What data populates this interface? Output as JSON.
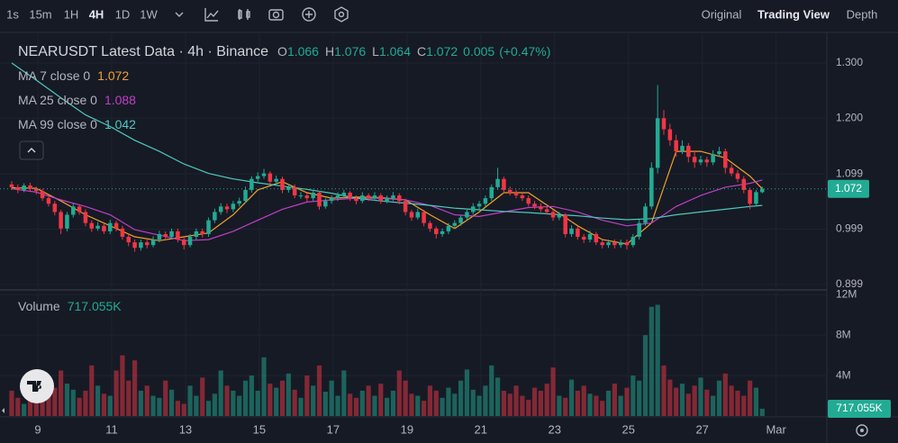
{
  "toolbar": {
    "intervals": [
      "1s",
      "15m",
      "1H",
      "4H",
      "1D",
      "1W"
    ],
    "active_interval": 3,
    "views": [
      "Original",
      "Trading View",
      "Depth"
    ],
    "active_view": 1
  },
  "chart_data": {
    "type": "candlestick",
    "title": "NEARUSDT Latest Data · 4h · Binance",
    "ohlc_legend": [
      {
        "label": "O",
        "value": 1.066
      },
      {
        "label": "H",
        "value": 1.076
      },
      {
        "label": "L",
        "value": 1.064
      },
      {
        "label": "C",
        "value": 1.072
      }
    ],
    "change": 0.005,
    "change_pct": {
      "value": 0.47,
      "label": "(+0.47%)"
    },
    "up_color": "#22ab94",
    "down_color": "#f23645",
    "open": [
      1.08,
      1.075,
      1.07,
      1.078,
      1.072,
      1.068,
      1.055,
      1.045,
      1.03,
      1.0,
      1.025,
      1.04,
      1.03,
      1.01,
      1.0,
      1.005,
      0.995,
      1.01,
      1.0,
      0.985,
      0.975,
      0.965,
      0.975,
      0.97,
      0.98,
      0.99,
      0.985,
      0.995,
      0.98,
      0.97,
      0.985,
      0.995,
      0.99,
      1.015,
      1.03,
      1.04,
      1.035,
      1.045,
      1.05,
      1.07,
      1.09,
      1.095,
      1.1,
      1.085,
      1.09,
      1.07,
      1.075,
      1.06,
      1.06,
      1.055,
      1.065,
      1.04,
      1.05,
      1.055,
      1.06,
      1.065,
      1.055,
      1.05,
      1.06,
      1.055,
      1.06,
      1.05,
      1.055,
      1.06,
      1.05,
      1.03,
      1.02,
      1.03,
      1.01,
      1.0,
      0.99,
      0.995,
      1.005,
      1.01,
      1.02,
      1.03,
      1.04,
      1.045,
      1.055,
      1.075,
      1.09,
      1.07,
      1.065,
      1.06,
      1.055,
      1.045,
      1.04,
      1.035,
      1.03,
      1.02,
      1.025,
      0.99,
      1.0,
      0.985,
      0.98,
      0.99,
      0.975,
      0.97,
      0.975,
      0.97,
      0.975,
      0.97,
      0.985,
      1.01,
      1.04,
      1.11,
      1.2,
      1.18,
      1.16,
      1.14,
      1.15,
      1.13,
      1.12,
      1.125,
      1.12,
      1.135,
      1.14,
      1.11,
      1.1,
      1.09,
      1.07,
      1.045,
      1.066
    ],
    "high": [
      1.086,
      1.08,
      1.082,
      1.083,
      1.076,
      1.072,
      1.06,
      1.05,
      1.034,
      1.03,
      1.046,
      1.044,
      1.035,
      1.015,
      1.012,
      1.01,
      1.016,
      1.014,
      1.005,
      0.99,
      0.98,
      0.98,
      0.98,
      0.986,
      0.996,
      0.995,
      1.0,
      1.0,
      0.985,
      0.99,
      1.0,
      1.0,
      1.02,
      1.036,
      1.046,
      1.045,
      1.05,
      1.056,
      1.076,
      1.095,
      1.102,
      1.108,
      1.104,
      1.096,
      1.094,
      1.08,
      1.08,
      1.066,
      1.064,
      1.07,
      1.068,
      1.055,
      1.06,
      1.066,
      1.07,
      1.068,
      1.06,
      1.066,
      1.064,
      1.066,
      1.064,
      1.06,
      1.066,
      1.064,
      1.054,
      1.034,
      1.036,
      1.034,
      1.014,
      1.004,
      1.0,
      1.01,
      1.015,
      1.025,
      1.036,
      1.046,
      1.05,
      1.06,
      1.08,
      1.11,
      1.094,
      1.076,
      1.07,
      1.064,
      1.06,
      1.05,
      1.046,
      1.04,
      1.034,
      1.03,
      1.028,
      1.006,
      1.004,
      0.99,
      0.996,
      0.994,
      0.98,
      0.98,
      0.98,
      0.98,
      0.98,
      0.99,
      1.016,
      1.046,
      1.12,
      1.26,
      1.215,
      1.19,
      1.17,
      1.16,
      1.155,
      1.14,
      1.132,
      1.13,
      1.142,
      1.148,
      1.145,
      1.116,
      1.106,
      1.095,
      1.074,
      1.07,
      1.076
    ],
    "low": [
      1.07,
      1.064,
      1.066,
      1.068,
      1.062,
      1.05,
      1.04,
      1.024,
      0.99,
      0.995,
      1.02,
      1.025,
      1.004,
      0.994,
      0.996,
      0.99,
      0.99,
      0.995,
      0.98,
      0.968,
      0.958,
      0.96,
      0.964,
      0.966,
      0.975,
      0.978,
      0.98,
      0.975,
      0.962,
      0.966,
      0.98,
      0.984,
      0.985,
      1.01,
      1.025,
      1.028,
      1.03,
      1.04,
      1.046,
      1.065,
      1.085,
      1.09,
      1.08,
      1.08,
      1.064,
      1.065,
      1.055,
      1.054,
      1.048,
      1.05,
      1.034,
      1.036,
      1.045,
      1.05,
      1.055,
      1.05,
      1.044,
      1.046,
      1.05,
      1.05,
      1.045,
      1.046,
      1.05,
      1.044,
      1.024,
      1.014,
      1.016,
      1.004,
      0.994,
      0.982,
      0.985,
      0.99,
      1.0,
      1.005,
      1.015,
      1.025,
      1.035,
      1.04,
      1.05,
      1.07,
      1.064,
      1.06,
      1.055,
      1.05,
      1.04,
      1.035,
      1.03,
      1.025,
      1.014,
      1.015,
      0.984,
      0.985,
      0.98,
      0.974,
      0.975,
      0.97,
      0.964,
      0.965,
      0.964,
      0.965,
      0.962,
      0.966,
      0.98,
      1.005,
      1.035,
      1.1,
      1.17,
      1.15,
      1.13,
      1.135,
      1.12,
      1.11,
      1.115,
      1.112,
      1.115,
      1.13,
      1.1,
      1.095,
      1.084,
      1.064,
      1.035,
      1.04,
      1.064
    ],
    "close": [
      1.075,
      1.07,
      1.078,
      1.072,
      1.068,
      1.055,
      1.045,
      1.03,
      1.0,
      1.025,
      1.04,
      1.03,
      1.01,
      1.0,
      1.005,
      0.995,
      1.01,
      1.0,
      0.985,
      0.975,
      0.965,
      0.975,
      0.97,
      0.98,
      0.99,
      0.985,
      0.995,
      0.98,
      0.97,
      0.985,
      0.995,
      0.99,
      1.015,
      1.03,
      1.04,
      1.035,
      1.045,
      1.05,
      1.07,
      1.09,
      1.095,
      1.1,
      1.085,
      1.09,
      1.07,
      1.075,
      1.06,
      1.06,
      1.055,
      1.065,
      1.04,
      1.05,
      1.055,
      1.06,
      1.065,
      1.055,
      1.05,
      1.06,
      1.055,
      1.06,
      1.05,
      1.055,
      1.06,
      1.05,
      1.03,
      1.02,
      1.03,
      1.01,
      1.0,
      0.99,
      0.995,
      1.005,
      1.01,
      1.02,
      1.03,
      1.04,
      1.045,
      1.055,
      1.075,
      1.09,
      1.07,
      1.065,
      1.06,
      1.055,
      1.045,
      1.04,
      1.035,
      1.03,
      1.02,
      1.025,
      0.99,
      1.0,
      0.985,
      0.98,
      0.99,
      0.975,
      0.97,
      0.975,
      0.97,
      0.975,
      0.97,
      0.985,
      1.01,
      1.04,
      1.11,
      1.2,
      1.18,
      1.16,
      1.14,
      1.15,
      1.13,
      1.12,
      1.125,
      1.12,
      1.135,
      1.14,
      1.11,
      1.1,
      1.09,
      1.07,
      1.045,
      1.066,
      1.072
    ],
    "ylim": [
      0.892,
      1.349
    ],
    "yticks": [
      {
        "value": 1.3,
        "label": "1.300"
      },
      {
        "value": 1.2,
        "label": "1.200"
      },
      1.099,
      0.999,
      0.899
    ],
    "xlim": [
      -1.9,
      132.5
    ],
    "xticks": [
      {
        "value": 4.25,
        "label": "9"
      },
      {
        "value": 16.25,
        "label": "11"
      },
      {
        "value": 28.25,
        "label": "13"
      },
      {
        "value": 40.25,
        "label": "15"
      },
      {
        "value": 52.25,
        "label": "17"
      },
      {
        "value": 64.25,
        "label": "19"
      },
      {
        "value": 76.25,
        "label": "21"
      },
      {
        "value": 88.25,
        "label": "23"
      },
      {
        "value": 100.25,
        "label": "25"
      },
      {
        "value": 112.25,
        "label": "27"
      },
      {
        "value": 124.25,
        "label": "Mar"
      }
    ],
    "last_price": 1.072,
    "ma": [
      {
        "name": "MA 7 close 0",
        "color": "#f0a12b",
        "last": 1.072,
        "x": [
          0,
          4,
          8,
          12,
          16,
          20,
          24,
          28,
          32,
          36,
          40,
          44,
          48,
          52,
          56,
          60,
          64,
          68,
          72,
          76,
          80,
          84,
          88,
          92,
          96,
          100,
          104,
          108,
          112,
          116,
          120,
          122
        ],
        "values": [
          1.074,
          1.073,
          1.05,
          1.025,
          1.005,
          0.985,
          0.978,
          0.985,
          0.992,
          1.025,
          1.07,
          1.085,
          1.065,
          1.055,
          1.057,
          1.056,
          1.052,
          1.025,
          1.0,
          1.03,
          1.065,
          1.065,
          1.035,
          1.005,
          0.98,
          0.972,
          1.01,
          1.14,
          1.14,
          1.128,
          1.095,
          1.072
        ]
      },
      {
        "name": "MA 25 close 0",
        "color": "#c13fc6",
        "last": 1.088,
        "x": [
          0,
          4,
          8,
          12,
          16,
          20,
          24,
          28,
          32,
          36,
          40,
          44,
          48,
          52,
          56,
          60,
          64,
          68,
          72,
          76,
          80,
          84,
          88,
          92,
          96,
          100,
          104,
          108,
          112,
          116,
          120,
          122
        ],
        "values": [
          1.072,
          1.066,
          1.052,
          1.04,
          1.025,
          0.998,
          0.988,
          0.978,
          0.98,
          0.995,
          1.015,
          1.035,
          1.048,
          1.052,
          1.055,
          1.055,
          1.052,
          1.042,
          1.025,
          1.022,
          1.03,
          1.038,
          1.04,
          1.03,
          1.015,
          1.005,
          1.01,
          1.04,
          1.06,
          1.075,
          1.082,
          1.088
        ]
      },
      {
        "name": "MA 99 close 0",
        "color": "#4ec9c0",
        "last": 1.042,
        "x": [
          0,
          4,
          8,
          12,
          16,
          20,
          24,
          28,
          32,
          36,
          40,
          44,
          48,
          52,
          56,
          60,
          64,
          68,
          72,
          76,
          80,
          84,
          88,
          92,
          96,
          100,
          104,
          108,
          112,
          116,
          120,
          122
        ],
        "values": [
          1.3,
          1.269,
          1.237,
          1.206,
          1.185,
          1.16,
          1.14,
          1.117,
          1.1,
          1.09,
          1.083,
          1.077,
          1.071,
          1.064,
          1.055,
          1.05,
          1.046,
          1.042,
          1.037,
          1.034,
          1.031,
          1.029,
          1.026,
          1.023,
          1.019,
          1.016,
          1.018,
          1.025,
          1.03,
          1.035,
          1.04,
          1.042
        ]
      }
    ],
    "volume": {
      "label": "Volume",
      "last": {
        "value": 0.717055,
        "label": "717.055K"
      },
      "ylim": [
        0,
        12.2
      ],
      "yticks": [
        {
          "value": 12,
          "label": "12M"
        },
        {
          "value": 8,
          "label": "8M"
        },
        {
          "value": 4,
          "label": "4M"
        }
      ],
      "values": [
        2.5,
        1.8,
        1.2,
        2.0,
        2.2,
        3.8,
        2.4,
        2.8,
        4.5,
        3.2,
        2.6,
        1.8,
        2.5,
        5.0,
        3.0,
        2.2,
        2.0,
        4.5,
        6.0,
        3.5,
        5.5,
        2.5,
        3.0,
        2.0,
        1.8,
        3.5,
        2.6,
        1.5,
        1.2,
        3.0,
        2.0,
        3.8,
        1.5,
        2.2,
        4.5,
        3.0,
        2.5,
        2.0,
        3.5,
        4.0,
        2.5,
        5.8,
        3.2,
        2.8,
        3.5,
        4.2,
        2.6,
        1.8,
        4.0,
        3.0,
        5.0,
        2.4,
        3.5,
        2.0,
        4.5,
        2.2,
        1.8,
        2.5,
        3.0,
        2.0,
        3.2,
        1.8,
        2.5,
        4.5,
        3.5,
        2.2,
        2.0,
        1.5,
        3.0,
        2.5,
        1.8,
        2.8,
        2.2,
        3.5,
        4.6,
        2.6,
        2.0,
        3.0,
        5.0,
        3.8,
        2.5,
        2.2,
        3.0,
        2.0,
        1.6,
        2.8,
        2.5,
        3.2,
        4.8,
        2.0,
        1.8,
        3.6,
        2.5,
        3.0,
        2.2,
        2.0,
        1.5,
        2.5,
        3.2,
        2.0,
        2.8,
        4.0,
        3.5,
        8.0,
        10.8,
        11.0,
        5.0,
        3.6,
        2.8,
        3.2,
        2.2,
        3.0,
        3.8,
        2.6,
        2.0,
        3.5,
        4.2,
        3.0,
        2.5,
        2.0,
        3.5,
        2.8,
        0.717055
      ]
    }
  }
}
